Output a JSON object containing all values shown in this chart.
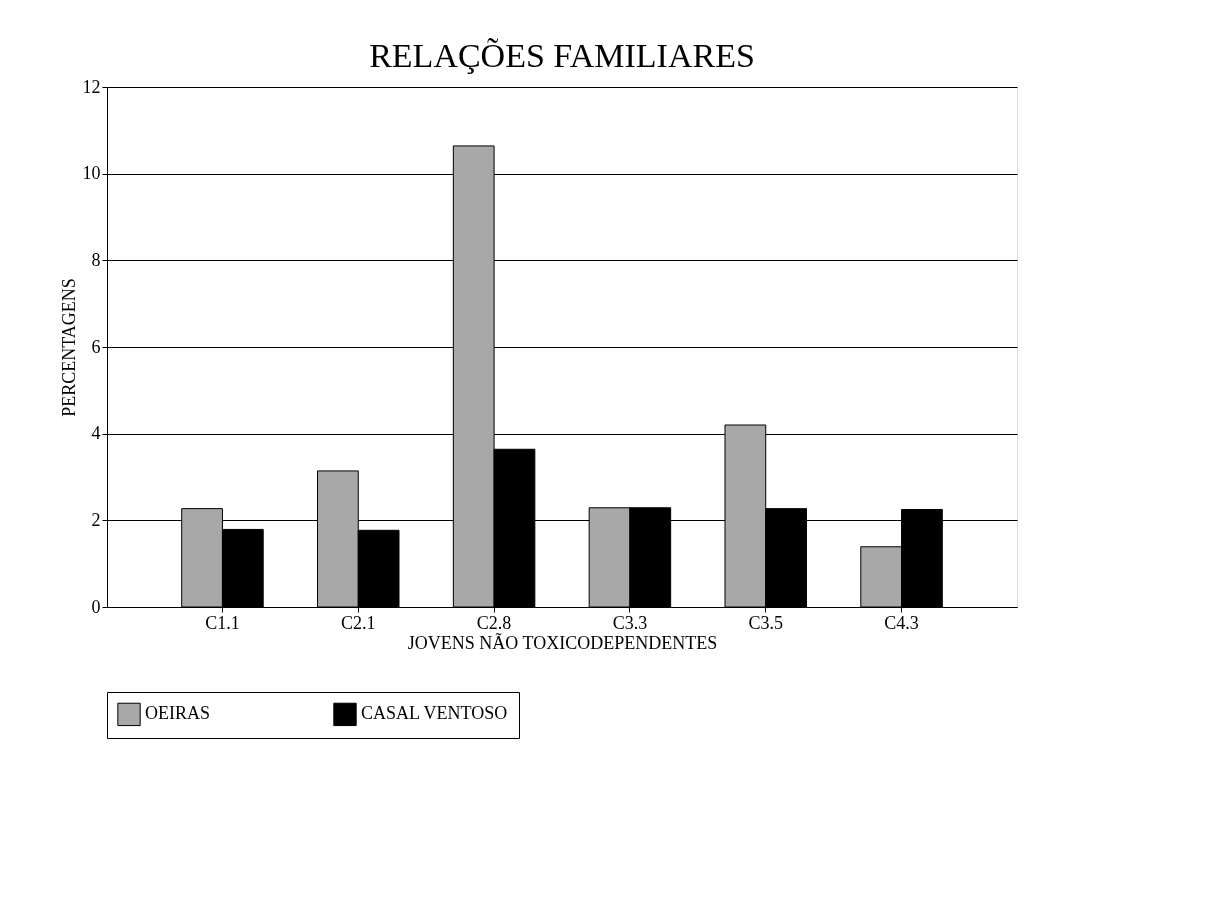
{
  "chart_data": {
    "type": "bar",
    "title": "RELAÇÕES FAMILIARES",
    "xlabel": "JOVENS NÃO TOXICODEPENDENTES",
    "ylabel": "PERCENTAGENS",
    "categories": [
      "C1.1",
      "C2.1",
      "C2.8",
      "C3.3",
      "C3.5",
      "C4.3"
    ],
    "series": [
      {
        "name": "OEIRAS",
        "color": "#a8a8a8",
        "values": [
          2.27,
          3.14,
          10.64,
          2.29,
          4.2,
          1.39
        ]
      },
      {
        "name": "CASAL VENTOSO",
        "color": "#000000",
        "values": [
          1.79,
          1.77,
          3.64,
          2.29,
          2.27,
          2.25
        ]
      }
    ],
    "ylim": [
      0,
      12
    ],
    "yticks": [
      0,
      2,
      4,
      6,
      8,
      10,
      12
    ],
    "grid": "y",
    "legend": "bottom"
  }
}
